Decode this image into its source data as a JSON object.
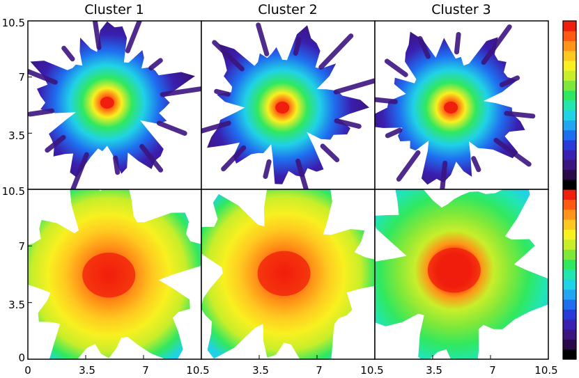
{
  "chart_data": {
    "type": "heatmap",
    "layout": "2 rows x 3 columns of panels",
    "column_titles": [
      "Cluster 1",
      "Cluster 2",
      "Cluster 3"
    ],
    "x_ticks": [
      [
        "0",
        "3.5",
        "7",
        "10.5"
      ],
      [
        "3.5",
        "7",
        "10.5"
      ],
      [
        "3.5",
        "7",
        "10.5"
      ]
    ],
    "y_ticks_top": [
      "10.5",
      "7",
      "3.5"
    ],
    "y_ticks_bottom": [
      "10.5",
      "7",
      "3.5",
      "0"
    ],
    "xlim": [
      0,
      10.5
    ],
    "ylim": [
      0,
      10.5
    ],
    "colormap": [
      "#000000",
      "#2a0a4a",
      "#3b1580",
      "#3a1fb0",
      "#2a3ad8",
      "#1f6ef0",
      "#22a6f2",
      "#20d2e6",
      "#22e6b0",
      "#30e860",
      "#7ee83a",
      "#c8ee2a",
      "#f8f020",
      "#ffc820",
      "#ff9418",
      "#ff5a10",
      "#f01e0c"
    ],
    "panels": [
      {
        "row": "top",
        "cluster": "Cluster 1",
        "peak_center": [
          4.8,
          5.4
        ],
        "peak_level": "red",
        "background": "white"
      },
      {
        "row": "top",
        "cluster": "Cluster 2",
        "peak_center": [
          4.9,
          5.1
        ],
        "peak_level": "red",
        "background": "white"
      },
      {
        "row": "top",
        "cluster": "Cluster 3",
        "peak_center": [
          4.6,
          5.1
        ],
        "peak_level": "red",
        "background": "white"
      },
      {
        "row": "bottom",
        "cluster": "Cluster 1",
        "peak_center": [
          4.9,
          5.2
        ],
        "peak_level": "red",
        "background": "white"
      },
      {
        "row": "bottom",
        "cluster": "Cluster 2",
        "peak_center": [
          5.0,
          5.3
        ],
        "peak_level": "red",
        "background": "white"
      },
      {
        "row": "bottom",
        "cluster": "Cluster 3",
        "peak_center": [
          4.8,
          5.5
        ],
        "peak_level": "red",
        "background": "white"
      }
    ],
    "colorbars": 2,
    "grid": false
  }
}
